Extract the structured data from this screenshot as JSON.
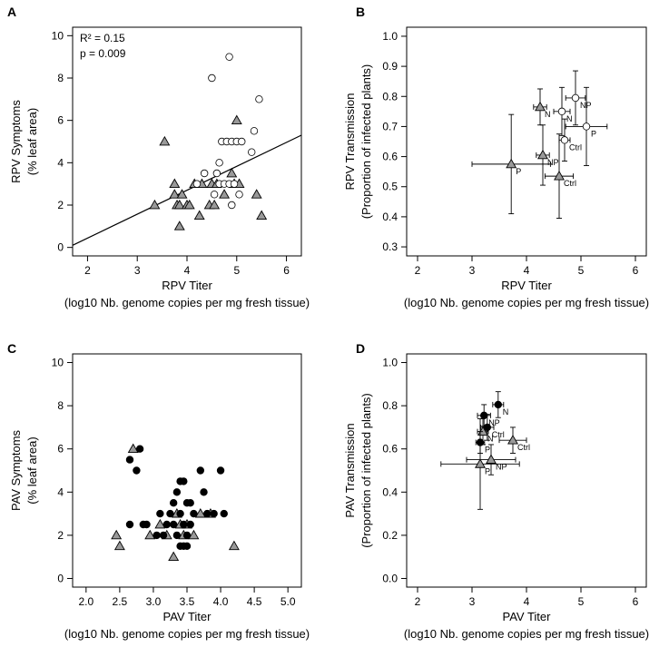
{
  "colors": {
    "triangle_fill": "#999999",
    "dot_fill": "#000000",
    "open_fill": "#ffffff",
    "stroke": "#000000"
  },
  "chart_data": [
    {
      "panel": "A",
      "type": "scatter",
      "xlabel": "RPV Titer",
      "xlabel2": "(log10 Nb. genome copies per mg fresh tissue)",
      "ylabel": "RPV Symptoms",
      "ylabel2": "(% leaf area)",
      "xlim": [
        1.7,
        6.3
      ],
      "ylim": [
        -0.4,
        10.4
      ],
      "xticks": [
        2,
        3,
        4,
        5,
        6
      ],
      "xtick_labels": [
        "2",
        "3",
        "4",
        "5",
        "6"
      ],
      "yticks": [
        0,
        2,
        4,
        6,
        8,
        10
      ],
      "ytick_labels": [
        "0",
        "2",
        "4",
        "6",
        "8",
        "10"
      ],
      "annotations": [
        "R² = 0.15",
        "p = 0.009"
      ],
      "fit_line": {
        "x1": 1.7,
        "y1": 0.1,
        "x2": 6.3,
        "y2": 5.3
      },
      "series": [
        {
          "name": "triangle",
          "marker": "triangle",
          "points": [
            [
              3.35,
              2.0
            ],
            [
              3.55,
              5.0
            ],
            [
              3.75,
              3.0
            ],
            [
              3.75,
              2.5
            ],
            [
              3.8,
              2.0
            ],
            [
              3.85,
              2.0
            ],
            [
              3.85,
              1.0
            ],
            [
              3.9,
              2.5
            ],
            [
              4.0,
              2.0
            ],
            [
              4.05,
              2.0
            ],
            [
              4.15,
              3.0
            ],
            [
              4.25,
              1.5
            ],
            [
              4.3,
              3.0
            ],
            [
              4.45,
              2.0
            ],
            [
              4.5,
              3.0
            ],
            [
              4.55,
              2.0
            ],
            [
              4.6,
              3.0
            ],
            [
              4.75,
              2.5
            ],
            [
              4.9,
              3.5
            ],
            [
              4.95,
              3.0
            ],
            [
              5.0,
              6.0
            ],
            [
              5.05,
              3.0
            ],
            [
              5.4,
              2.5
            ],
            [
              5.5,
              1.5
            ]
          ]
        },
        {
          "name": "circle-open",
          "marker": "circle-open",
          "points": [
            [
              4.5,
              8.0
            ],
            [
              4.85,
              9.0
            ],
            [
              4.65,
              4.0
            ],
            [
              4.7,
              5.0
            ],
            [
              4.8,
              5.0
            ],
            [
              4.9,
              5.0
            ],
            [
              5.0,
              5.0
            ],
            [
              5.1,
              5.0
            ],
            [
              5.3,
              4.5
            ],
            [
              5.35,
              5.5
            ],
            [
              5.45,
              7.0
            ],
            [
              4.35,
              3.5
            ],
            [
              4.2,
              3.0
            ],
            [
              4.6,
              3.5
            ],
            [
              4.65,
              3.0
            ],
            [
              4.75,
              3.0
            ],
            [
              4.85,
              3.0
            ],
            [
              4.95,
              3.0
            ],
            [
              5.05,
              2.5
            ],
            [
              4.55,
              2.5
            ],
            [
              4.9,
              2.0
            ]
          ]
        }
      ]
    },
    {
      "panel": "B",
      "type": "scatter",
      "xlabel": "RPV Titer",
      "xlabel2": "(log10 Nb. genome copies per mg fresh tissue)",
      "ylabel": "RPV Transmission",
      "ylabel2": "(Proportion of infected plants)",
      "xlim": [
        1.8,
        6.2
      ],
      "ylim": [
        0.27,
        1.03
      ],
      "xticks": [
        2,
        3,
        4,
        5,
        6
      ],
      "xtick_labels": [
        "2",
        "3",
        "4",
        "5",
        "6"
      ],
      "yticks": [
        0.3,
        0.4,
        0.5,
        0.6,
        0.7,
        0.8,
        0.9,
        1.0
      ],
      "ytick_labels": [
        "0.3",
        "0.4",
        "0.5",
        "0.6",
        "0.7",
        "0.8",
        "0.9",
        "1.0"
      ],
      "series": [
        {
          "name": "triangle",
          "marker": "triangle",
          "points": [
            {
              "x": 3.72,
              "y": 0.575,
              "xerr": 0.72,
              "yerr": 0.165,
              "label": "P"
            },
            {
              "x": 4.3,
              "y": 0.605,
              "xerr": 0.12,
              "yerr": 0.1,
              "label": "NP"
            },
            {
              "x": 4.25,
              "y": 0.765,
              "xerr": 0.12,
              "yerr": 0.06,
              "label": "N"
            },
            {
              "x": 4.6,
              "y": 0.535,
              "xerr": 0.26,
              "yerr": 0.14,
              "label": "Ctrl"
            }
          ]
        },
        {
          "name": "circle-open",
          "marker": "circle-open",
          "points": [
            {
              "x": 4.7,
              "y": 0.655,
              "xerr": 0.1,
              "yerr": 0.07,
              "label": "Ctrl"
            },
            {
              "x": 5.1,
              "y": 0.7,
              "xerr": 0.38,
              "yerr": 0.13,
              "label": "P"
            },
            {
              "x": 4.65,
              "y": 0.75,
              "xerr": 0.15,
              "yerr": 0.08,
              "label": "N"
            },
            {
              "x": 4.9,
              "y": 0.795,
              "xerr": 0.18,
              "yerr": 0.09,
              "label": "NP"
            }
          ]
        }
      ]
    },
    {
      "panel": "C",
      "type": "scatter",
      "xlabel": "PAV Titer",
      "xlabel2": "(log10 Nb. genome copies per mg fresh tissue)",
      "ylabel": "PAV Symptoms",
      "ylabel2": "(% leaf area)",
      "xlim": [
        1.8,
        5.2
      ],
      "ylim": [
        -0.4,
        10.4
      ],
      "xticks": [
        2.0,
        2.5,
        3.0,
        3.5,
        4.0,
        4.5,
        5.0
      ],
      "xtick_labels": [
        "2.0",
        "2.5",
        "3.0",
        "3.5",
        "4.0",
        "4.5",
        "5.0"
      ],
      "yticks": [
        0,
        2,
        4,
        6,
        8,
        10
      ],
      "ytick_labels": [
        "0",
        "2",
        "4",
        "6",
        "8",
        "10"
      ],
      "series": [
        {
          "name": "triangle",
          "marker": "triangle",
          "points": [
            [
              2.45,
              2.0
            ],
            [
              2.5,
              1.5
            ],
            [
              2.7,
              6.0
            ],
            [
              2.95,
              2.0
            ],
            [
              3.1,
              2.5
            ],
            [
              3.2,
              2.0
            ],
            [
              3.3,
              1.0
            ],
            [
              3.35,
              3.0
            ],
            [
              3.4,
              2.5
            ],
            [
              3.45,
              2.0
            ],
            [
              3.5,
              2.5
            ],
            [
              3.6,
              2.0
            ],
            [
              3.7,
              3.0
            ],
            [
              3.85,
              3.0
            ],
            [
              4.2,
              1.5
            ]
          ]
        },
        {
          "name": "dot",
          "marker": "dot",
          "points": [
            [
              2.65,
              5.5
            ],
            [
              2.75,
              5.0
            ],
            [
              2.8,
              6.0
            ],
            [
              2.65,
              2.5
            ],
            [
              2.85,
              2.5
            ],
            [
              2.9,
              2.5
            ],
            [
              3.05,
              2.0
            ],
            [
              3.1,
              3.0
            ],
            [
              3.15,
              2.0
            ],
            [
              3.2,
              2.5
            ],
            [
              3.25,
              3.0
            ],
            [
              3.3,
              3.5
            ],
            [
              3.3,
              2.5
            ],
            [
              3.35,
              4.0
            ],
            [
              3.4,
              4.5
            ],
            [
              3.45,
              4.5
            ],
            [
              3.4,
              3.0
            ],
            [
              3.45,
              2.5
            ],
            [
              3.4,
              1.5
            ],
            [
              3.45,
              1.5
            ],
            [
              3.5,
              1.5
            ],
            [
              3.5,
              3.5
            ],
            [
              3.55,
              3.5
            ],
            [
              3.55,
              2.5
            ],
            [
              3.6,
              3.0
            ],
            [
              3.7,
              5.0
            ],
            [
              3.75,
              4.0
            ],
            [
              3.8,
              3.0
            ],
            [
              3.9,
              3.0
            ],
            [
              4.0,
              5.0
            ],
            [
              4.05,
              3.0
            ],
            [
              3.35,
              2.0
            ],
            [
              3.5,
              2.0
            ]
          ]
        }
      ]
    },
    {
      "panel": "D",
      "type": "scatter",
      "xlabel": "PAV Titer",
      "xlabel2": "(log10 Nb. genome copies per mg fresh tissue)",
      "ylabel": "PAV Transmission",
      "ylabel2": "(Proportion of infected plants)",
      "xlim": [
        1.8,
        6.2
      ],
      "ylim": [
        -0.04,
        1.04
      ],
      "xticks": [
        2,
        3,
        4,
        5,
        6
      ],
      "xtick_labels": [
        "2",
        "3",
        "4",
        "5",
        "6"
      ],
      "yticks": [
        0.0,
        0.2,
        0.4,
        0.6,
        0.8,
        1.0
      ],
      "ytick_labels": [
        "0.0",
        "0.2",
        "0.4",
        "0.6",
        "0.8",
        "1.0"
      ],
      "series": [
        {
          "name": "triangle",
          "marker": "triangle",
          "points": [
            {
              "x": 3.15,
              "y": 0.53,
              "xerr": 0.72,
              "yerr": 0.21,
              "label": "P"
            },
            {
              "x": 3.35,
              "y": 0.55,
              "xerr": 0.45,
              "yerr": 0.07,
              "label": "NP"
            },
            {
              "x": 3.75,
              "y": 0.64,
              "xerr": 0.25,
              "yerr": 0.06,
              "label": "Ctrl"
            },
            {
              "x": 3.2,
              "y": 0.68,
              "xerr": 0.1,
              "yerr": 0.06,
              "label": "N"
            }
          ]
        },
        {
          "name": "dot",
          "marker": "dot",
          "points": [
            {
              "x": 3.15,
              "y": 0.63,
              "xerr": 0.08,
              "yerr": 0.05,
              "label": "P"
            },
            {
              "x": 3.28,
              "y": 0.7,
              "xerr": 0.12,
              "yerr": 0.06,
              "label": "Ctrl"
            },
            {
              "x": 3.22,
              "y": 0.755,
              "xerr": 0.12,
              "yerr": 0.05,
              "label": "NP"
            },
            {
              "x": 3.48,
              "y": 0.805,
              "xerr": 0.1,
              "yerr": 0.06,
              "label": "N"
            }
          ]
        }
      ]
    }
  ]
}
